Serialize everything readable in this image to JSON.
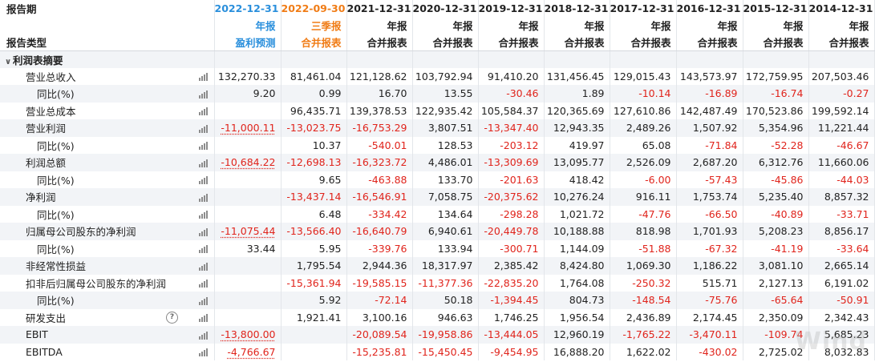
{
  "header": {
    "row1_label": "报告期",
    "row2_label": "报告类型",
    "periods": [
      {
        "date": "2022-12-31",
        "type": "年报",
        "sub": "盈利预测",
        "color": "blue"
      },
      {
        "date": "2022-09-30",
        "type": "三季报",
        "sub": "合并报表",
        "color": "orange"
      },
      {
        "date": "2021-12-31",
        "type": "年报",
        "sub": "合并报表",
        "color": ""
      },
      {
        "date": "2020-12-31",
        "type": "年报",
        "sub": "合并报表",
        "color": ""
      },
      {
        "date": "2019-12-31",
        "type": "年报",
        "sub": "合并报表",
        "color": ""
      },
      {
        "date": "2018-12-31",
        "type": "年报",
        "sub": "合并报表",
        "color": ""
      },
      {
        "date": "2017-12-31",
        "type": "年报",
        "sub": "合并报表",
        "color": ""
      },
      {
        "date": "2016-12-31",
        "type": "年报",
        "sub": "合并报表",
        "color": ""
      },
      {
        "date": "2015-12-31",
        "type": "年报",
        "sub": "合并报表",
        "color": ""
      },
      {
        "date": "2014-12-31",
        "type": "年报",
        "sub": "合并报表",
        "color": ""
      }
    ]
  },
  "section": {
    "title": "利润表摘要"
  },
  "rows": [
    {
      "label": "营业总收入",
      "level": 1,
      "values": [
        "132,270.33",
        "81,461.04",
        "121,128.62",
        "103,792.94",
        "91,410.20",
        "131,456.45",
        "129,015.43",
        "143,573.97",
        "172,759.95",
        "207,503.46"
      ]
    },
    {
      "label": "同比(%)",
      "level": 2,
      "values": [
        "9.20",
        "0.99",
        "16.70",
        "13.55",
        "-30.46",
        "1.89",
        "-10.14",
        "-16.89",
        "-16.74",
        "-0.27"
      ]
    },
    {
      "label": "营业总成本",
      "level": 1,
      "values": [
        "",
        "96,435.71",
        "139,378.53",
        "122,935.42",
        "105,584.37",
        "120,365.69",
        "127,610.86",
        "142,487.49",
        "170,523.86",
        "199,592.14"
      ]
    },
    {
      "label": "营业利润",
      "level": 1,
      "values": [
        "-11,000.11",
        "-13,023.75",
        "-16,753.29",
        "3,807.51",
        "-13,347.40",
        "12,943.35",
        "2,489.26",
        "1,507.92",
        "5,354.96",
        "11,221.44"
      ]
    },
    {
      "label": "同比(%)",
      "level": 2,
      "values": [
        "",
        "10.37",
        "-540.01",
        "128.53",
        "-203.12",
        "419.97",
        "65.08",
        "-71.84",
        "-52.28",
        "-46.67"
      ]
    },
    {
      "label": "利润总额",
      "level": 1,
      "values": [
        "-10,684.22",
        "-12,698.13",
        "-16,323.72",
        "4,486.01",
        "-13,309.69",
        "13,095.77",
        "2,526.09",
        "2,687.20",
        "6,312.76",
        "11,660.06"
      ]
    },
    {
      "label": "同比(%)",
      "level": 2,
      "values": [
        "",
        "9.65",
        "-463.88",
        "133.70",
        "-201.63",
        "418.42",
        "-6.00",
        "-57.43",
        "-45.86",
        "-44.03"
      ]
    },
    {
      "label": "净利润",
      "level": 1,
      "values": [
        "",
        "-13,437.14",
        "-16,546.91",
        "7,058.75",
        "-20,375.62",
        "10,276.24",
        "916.11",
        "1,753.74",
        "5,235.40",
        "8,857.32"
      ]
    },
    {
      "label": "同比(%)",
      "level": 2,
      "values": [
        "",
        "6.48",
        "-334.42",
        "134.64",
        "-298.28",
        "1,021.72",
        "-47.76",
        "-66.50",
        "-40.89",
        "-33.71"
      ]
    },
    {
      "label": "归属母公司股东的净利润",
      "level": 1,
      "values": [
        "-11,075.44",
        "-13,566.40",
        "-16,640.79",
        "6,940.61",
        "-20,449.78",
        "10,188.88",
        "818.98",
        "1,701.93",
        "5,208.23",
        "8,856.17"
      ]
    },
    {
      "label": "同比(%)",
      "level": 2,
      "values": [
        "33.44",
        "5.95",
        "-339.76",
        "133.94",
        "-300.71",
        "1,144.09",
        "-51.88",
        "-67.32",
        "-41.19",
        "-33.64"
      ]
    },
    {
      "label": "非经常性损益",
      "level": 1,
      "values": [
        "",
        "1,795.54",
        "2,944.36",
        "18,317.97",
        "2,385.42",
        "8,424.80",
        "1,069.30",
        "1,186.22",
        "3,081.10",
        "2,665.14"
      ]
    },
    {
      "label": "扣非后归属母公司股东的净利润",
      "level": 1,
      "values": [
        "",
        "-15,361.94",
        "-19,585.15",
        "-11,377.36",
        "-22,835.20",
        "1,764.08",
        "-250.32",
        "515.71",
        "2,127.13",
        "6,191.02"
      ]
    },
    {
      "label": "同比(%)",
      "level": 2,
      "values": [
        "",
        "5.92",
        "-72.14",
        "50.18",
        "-1,394.45",
        "804.73",
        "-148.54",
        "-75.76",
        "-65.64",
        "-50.91"
      ]
    },
    {
      "label": "研发支出",
      "level": 1,
      "help": true,
      "values": [
        "",
        "1,921.41",
        "3,100.16",
        "946.63",
        "1,746.25",
        "1,956.54",
        "2,436.89",
        "2,174.45",
        "2,350.09",
        "2,342.43"
      ]
    },
    {
      "label": "EBIT",
      "level": 1,
      "values": [
        "-13,800.00",
        "",
        "-20,089.54",
        "-19,958.86",
        "-13,444.05",
        "12,960.19",
        "-1,765.22",
        "-3,470.11",
        "-109.74",
        "5,685.23"
      ]
    },
    {
      "label": "EBITDA",
      "level": 1,
      "values": [
        "-4,766.67",
        "",
        "-15,235.81",
        "-15,450.45",
        "-9,454.95",
        "16,888.20",
        "1,622.02",
        "-430.02",
        "2,725.02",
        "8,032.83"
      ]
    }
  ],
  "watermark": "Wind"
}
